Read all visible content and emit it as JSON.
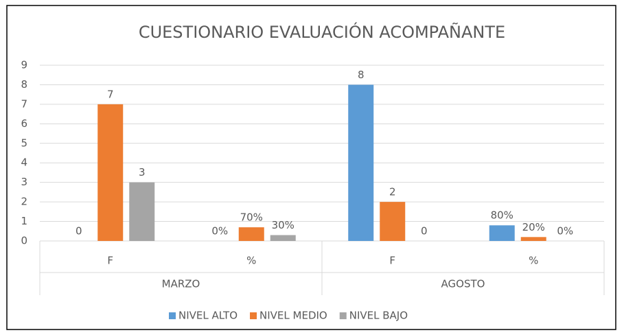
{
  "chart_data": {
    "type": "bar",
    "title": "CUESTIONARIO EVALUACIÓN ACOMPAÑANTE",
    "groups": [
      {
        "name": "MARZO",
        "categories": [
          "F",
          "%"
        ]
      },
      {
        "name": "AGOSTO",
        "categories": [
          "F",
          "%"
        ]
      }
    ],
    "series": [
      {
        "name": "NIVEL ALTO",
        "color": "#5b9bd5",
        "values": [
          0,
          0,
          8,
          0.8
        ],
        "value_labels": [
          "0",
          "0%",
          "8",
          "80%"
        ]
      },
      {
        "name": "NIVEL MEDIO",
        "color": "#ed7d31",
        "values": [
          7,
          0.7,
          2,
          0.2
        ],
        "value_labels": [
          "7",
          "70%",
          "2",
          "20%"
        ]
      },
      {
        "name": "NIVEL BAJO",
        "color": "#a5a5a5",
        "values": [
          3,
          0.3,
          0,
          0
        ],
        "value_labels": [
          "3",
          "30%",
          "0",
          "0%"
        ]
      }
    ],
    "ylim": [
      0,
      9
    ],
    "yticks": [
      0,
      1,
      2,
      3,
      4,
      5,
      6,
      7,
      8,
      9
    ],
    "grid": true,
    "legend": "bottom"
  }
}
